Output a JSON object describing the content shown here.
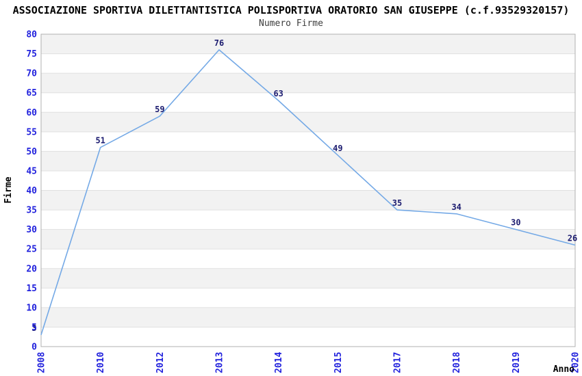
{
  "header": {
    "title": "ASSOCIAZIONE SPORTIVA DILETTANTISTICA POLISPORTIVA ORATORIO SAN GIUSEPPE (c.f.93529320157)"
  },
  "chart_data": {
    "type": "line",
    "title": "Numero Firme",
    "xlabel": "Anno",
    "ylabel": "Firme",
    "categories": [
      "2008",
      "2010",
      "2012",
      "2013",
      "2014",
      "2015",
      "2017",
      "2018",
      "2019",
      "2020"
    ],
    "values": [
      3,
      51,
      59,
      76,
      63,
      49,
      35,
      34,
      30,
      26
    ],
    "ylim": [
      0,
      80
    ],
    "yticks": [
      0,
      5,
      10,
      15,
      20,
      25,
      30,
      35,
      40,
      45,
      50,
      55,
      60,
      65,
      70,
      75,
      80
    ],
    "grid": "horizontal gridlines with alternating shaded bands",
    "legend": "none",
    "markers": "none",
    "point_labels_shown": true,
    "colors": {
      "line": "#74a9e6",
      "tick_label": "#2222dd",
      "point_label": "#1c1c70",
      "band": "#f2f2f2",
      "grid": "#e0e0e0",
      "border": "#b0b0b0",
      "axis_title": "#000000",
      "title": "#000000",
      "subtitle": "#3c3c3c",
      "background": "#ffffff"
    }
  }
}
